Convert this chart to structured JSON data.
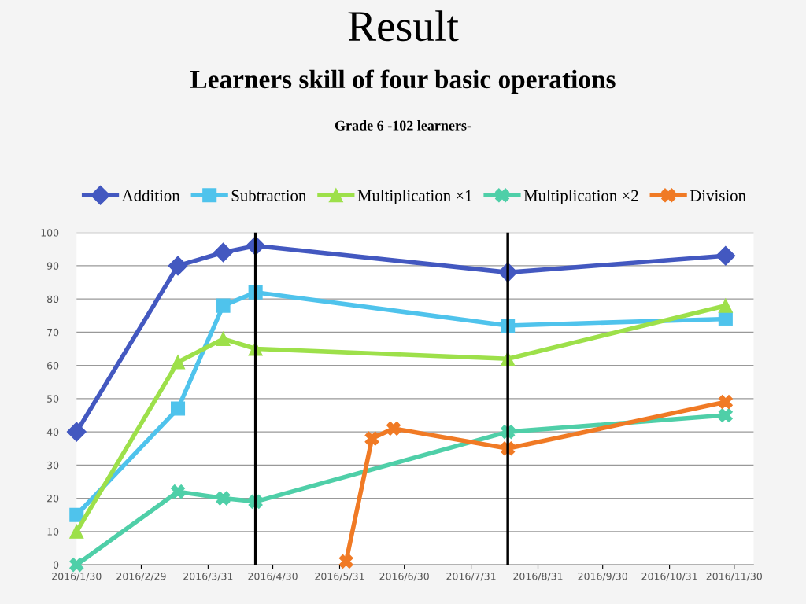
{
  "chart_data": {
    "type": "line",
    "title": "Result",
    "subtitle": "Learners skill of four basic operations",
    "annotations": [
      "Grade 6 -102 learners-"
    ],
    "x": [
      "2016-01-30",
      "2016-03-17",
      "2016-04-07",
      "2016-04-22",
      "2016-08-17",
      "2016-11-26"
    ],
    "series": [
      {
        "name": "Addition",
        "color": "#4358c0",
        "marker": "diamond",
        "values": [
          40,
          90,
          94,
          96,
          88,
          93
        ]
      },
      {
        "name": "Subtraction",
        "color": "#4fc3ec",
        "marker": "square",
        "values": [
          15,
          47,
          78,
          82,
          72,
          74
        ]
      },
      {
        "name": "Multiplication ×1",
        "color": "#9de04a",
        "marker": "triangle",
        "values": [
          10,
          61,
          68,
          65,
          62,
          78
        ]
      },
      {
        "name": "Multiplication ×2",
        "color": "#4fcfa8",
        "marker": "cross",
        "values": [
          0,
          22,
          20,
          19,
          40,
          45
        ]
      },
      {
        "name": "Division",
        "color": "#f07a25",
        "marker": "cross",
        "x": [
          "2016-06-03",
          "2016-06-15",
          "2016-06-25",
          "2016-08-17",
          "2016-11-26"
        ],
        "values": [
          1,
          38,
          41,
          35,
          49
        ]
      }
    ],
    "xlim": [
      "2016-01-30",
      "2016-12-09"
    ],
    "xticks": [
      {
        "value": "2016-01-30",
        "label": "2016/1/30"
      },
      {
        "value": "2016-02-29",
        "label": "2016/2/29"
      },
      {
        "value": "2016-03-31",
        "label": "2016/3/31"
      },
      {
        "value": "2016-04-30",
        "label": "2016/4/30"
      },
      {
        "value": "2016-05-31",
        "label": "2016/5/31"
      },
      {
        "value": "2016-06-30",
        "label": "2016/6/30"
      },
      {
        "value": "2016-07-31",
        "label": "2016/7/31"
      },
      {
        "value": "2016-08-31",
        "label": "2016/8/31"
      },
      {
        "value": "2016-09-30",
        "label": "2016/9/30"
      },
      {
        "value": "2016-10-31",
        "label": "2016/10/31"
      },
      {
        "value": "2016-11-30",
        "label": "2016/11/30"
      }
    ],
    "ylim": [
      0,
      100
    ],
    "yticks": [
      0,
      10,
      20,
      30,
      40,
      50,
      60,
      70,
      80,
      90,
      100
    ],
    "ref_lines": [
      {
        "axis": "x",
        "value": "2016-04-22",
        "color": "#000000"
      },
      {
        "axis": "x",
        "value": "2016-08-17",
        "color": "#000000"
      }
    ],
    "grid": "y",
    "legend": "top",
    "line_style": "solid"
  }
}
